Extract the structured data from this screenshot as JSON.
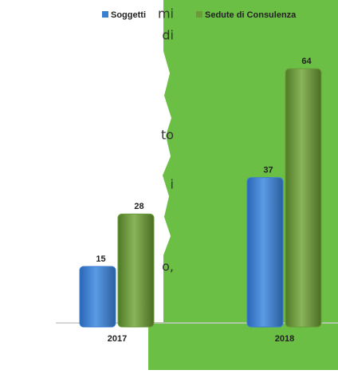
{
  "side_text": [
    "mi",
    "di",
    "to",
    "i",
    "o,"
  ],
  "chart_data": {
    "type": "bar",
    "categories": [
      "2017",
      "2018"
    ],
    "series": [
      {
        "name": "Soggetti",
        "color": "#3b7fd1",
        "values": [
          15,
          37
        ]
      },
      {
        "name": "Sedute di Consulenza",
        "color": "#6a9a3a",
        "values": [
          28,
          64
        ]
      }
    ]
  }
}
